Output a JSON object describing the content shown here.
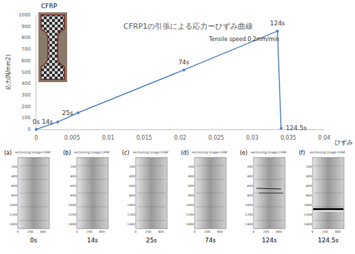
{
  "header": {
    "specimen": "CFRP"
  },
  "chart_data": {
    "type": "line",
    "title": "CFRP1の引張による応力ーひずみ曲線",
    "subtitle": "Tensile speed 0.2mm/min",
    "x_label": "ひずみ",
    "y_label": "応力(N/mm2)",
    "x": [
      0,
      0.003,
      0.0058,
      0.0205,
      0.0335,
      0.034
    ],
    "values": [
      0,
      65,
      145,
      520,
      860,
      10
    ],
    "point_labels": [
      "0s",
      "14s",
      "25s",
      "74s",
      "124s",
      "124.5s"
    ],
    "color": "#4a7ebb",
    "marker": "circle",
    "xlim": [
      0,
      0.04
    ],
    "xticks": [
      0,
      0.005,
      0.01,
      0.015,
      0.02,
      0.025,
      0.03,
      0.035,
      0.04
    ],
    "ylim": [
      0,
      1000
    ],
    "yticks": [
      0,
      100,
      200,
      300,
      400,
      500,
      600,
      700,
      800,
      900,
      1000
    ],
    "grid": false
  },
  "panels": {
    "title": "sectioning image-CFRP",
    "xlim": [
      0,
      500
    ],
    "ylim": [
      0,
      1500
    ],
    "xticks": [
      0,
      200,
      400
    ],
    "yticks": [
      200,
      400,
      600,
      800,
      1000,
      1200,
      1400
    ],
    "items": [
      {
        "label": "(a)",
        "caption": "0s"
      },
      {
        "label": "(b)",
        "caption": "14s"
      },
      {
        "label": "(c)",
        "caption": "25s"
      },
      {
        "label": "(d)",
        "caption": "74s"
      },
      {
        "label": "(e)",
        "caption": "124s"
      },
      {
        "label": "(f)",
        "caption": "124.5s"
      }
    ]
  }
}
